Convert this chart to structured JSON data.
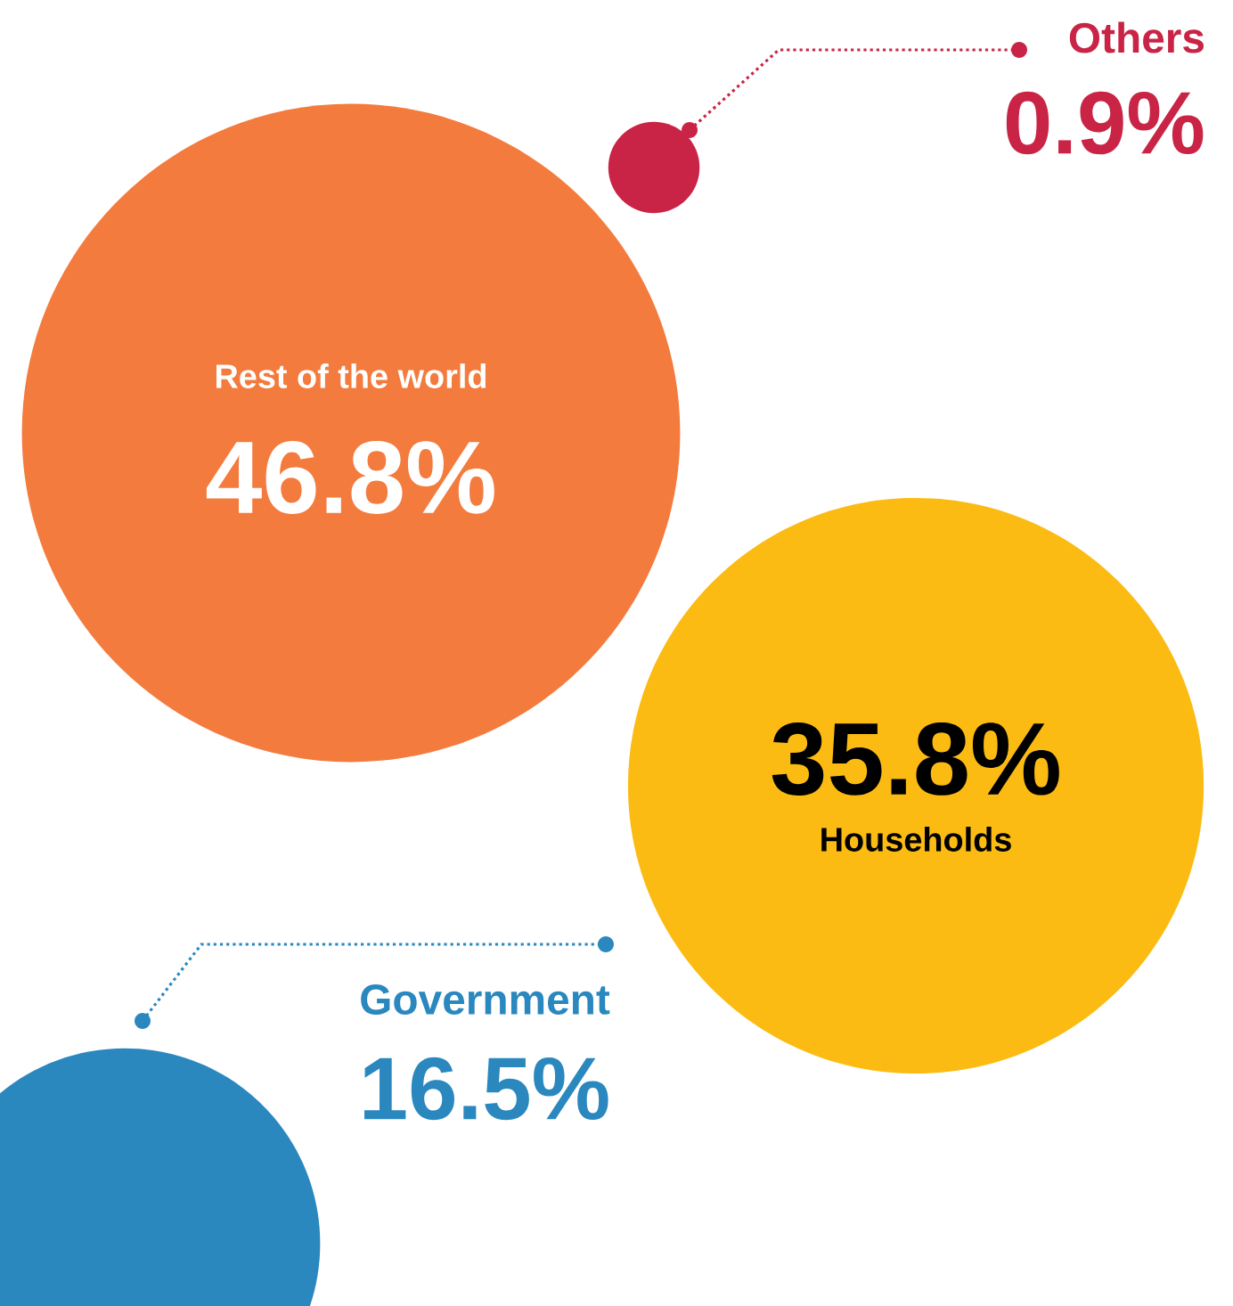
{
  "chart_data": {
    "type": "other",
    "categories": [
      "Rest of the world",
      "Households",
      "Government",
      "Others"
    ],
    "values": [
      46.8,
      35.8,
      16.5,
      0.9
    ],
    "value_labels": [
      "46.8%",
      "35.8%",
      "16.5%",
      "0.9%"
    ],
    "colors": [
      "#f47b3e",
      "#fbbb12",
      "#2a88bf",
      "#c92446"
    ]
  }
}
